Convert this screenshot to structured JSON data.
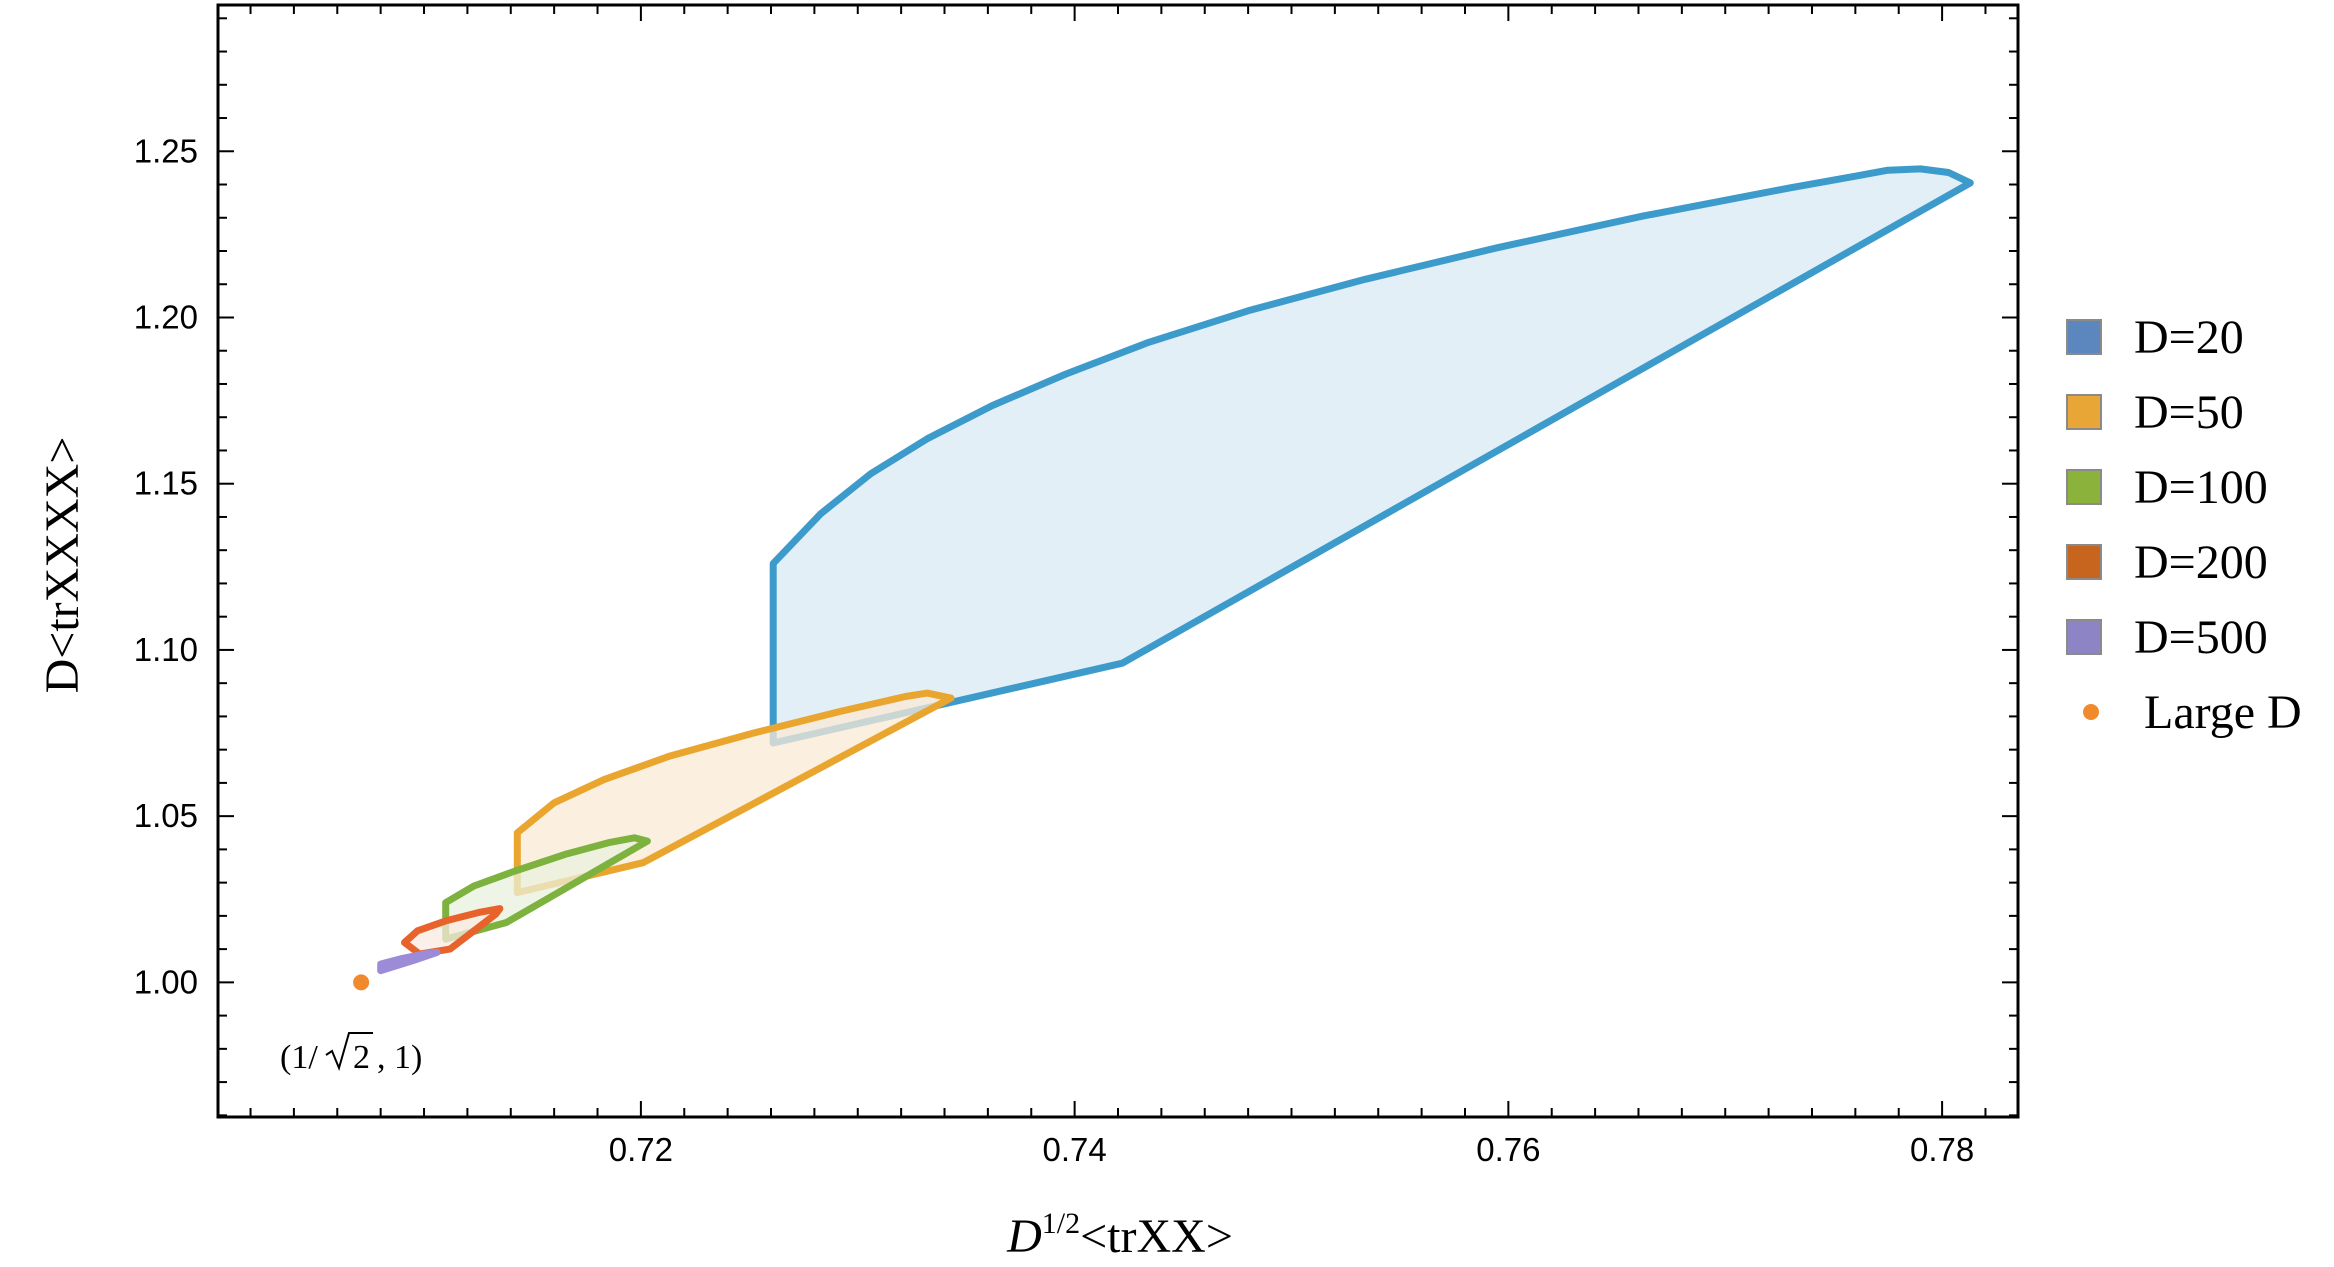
{
  "chart_data": {
    "type": "area",
    "xlabel": {
      "base": "D",
      "sup": "1/2",
      "rest": "<trXX>"
    },
    "ylabel": "D<trXXXX>",
    "xlim": [
      0.7005,
      0.7835
    ],
    "ylim": [
      0.9595,
      1.294
    ],
    "xticks": [
      0.72,
      0.74,
      0.76,
      0.78
    ],
    "xtick_labels": [
      "0.72",
      "0.74",
      "0.76",
      "0.78"
    ],
    "xminor_step": 0.002,
    "yticks": [
      1.0,
      1.05,
      1.1,
      1.15,
      1.2,
      1.25
    ],
    "ytick_labels": [
      "1.00",
      "1.05",
      "1.10",
      "1.15",
      "1.20",
      "1.25"
    ],
    "yminor_step": 0.01,
    "grid": false,
    "legend_position": "right",
    "series": [
      {
        "name": "D=20",
        "legend_color": "#5b86be",
        "stroke": "#3d9bcc",
        "fill": "#d8e9f4",
        "points": [
          [
            0.7261,
            1.072
          ],
          [
            0.7261,
            1.126
          ],
          [
            0.7283,
            1.141
          ],
          [
            0.7306,
            1.153
          ],
          [
            0.7332,
            1.1635
          ],
          [
            0.7362,
            1.1735
          ],
          [
            0.7396,
            1.183
          ],
          [
            0.7434,
            1.1925
          ],
          [
            0.748,
            1.202
          ],
          [
            0.7534,
            1.2115
          ],
          [
            0.7595,
            1.221
          ],
          [
            0.7662,
            1.2305
          ],
          [
            0.773,
            1.239
          ],
          [
            0.776,
            1.2425
          ],
          [
            0.7775,
            1.2443
          ],
          [
            0.779,
            1.2447
          ],
          [
            0.7803,
            1.2436
          ],
          [
            0.7813,
            1.2405
          ],
          [
            0.7422,
            1.096
          ],
          [
            0.7261,
            1.072
          ]
        ]
      },
      {
        "name": "D=50",
        "legend_color": "#e7a636",
        "stroke": "#eaa52f",
        "fill": "#f9ead6",
        "points": [
          [
            0.7143,
            1.027
          ],
          [
            0.7143,
            1.045
          ],
          [
            0.716,
            1.054
          ],
          [
            0.7183,
            1.061
          ],
          [
            0.7213,
            1.068
          ],
          [
            0.7252,
            1.075
          ],
          [
            0.7292,
            1.0815
          ],
          [
            0.7322,
            1.086
          ],
          [
            0.7332,
            1.087
          ],
          [
            0.7343,
            1.0855
          ],
          [
            0.7201,
            1.036
          ],
          [
            0.7143,
            1.027
          ]
        ]
      },
      {
        "name": "D=100",
        "legend_color": "#8bb33b",
        "stroke": "#7eb23f",
        "fill": "#eaf1de",
        "points": [
          [
            0.711,
            1.013
          ],
          [
            0.711,
            1.024
          ],
          [
            0.7123,
            1.029
          ],
          [
            0.7142,
            1.0335
          ],
          [
            0.7165,
            1.0385
          ],
          [
            0.7185,
            1.042
          ],
          [
            0.7197,
            1.0435
          ],
          [
            0.7203,
            1.0425
          ],
          [
            0.7138,
            1.018
          ],
          [
            0.711,
            1.013
          ]
        ]
      },
      {
        "name": "D=200",
        "legend_color": "#c7641e",
        "stroke": "#e8622c",
        "fill": "#faeae2",
        "points": [
          [
            0.7098,
            1.0085
          ],
          [
            0.7091,
            1.012
          ],
          [
            0.7097,
            1.0155
          ],
          [
            0.711,
            1.0185
          ],
          [
            0.7125,
            1.021
          ],
          [
            0.7135,
            1.0222
          ],
          [
            0.7133,
            1.0205
          ],
          [
            0.7112,
            1.01
          ],
          [
            0.7098,
            1.0085
          ]
        ]
      },
      {
        "name": "D=500",
        "legend_color": "#8d84c6",
        "stroke": "#9c8bd6",
        "fill": "#eeeaf8",
        "points": [
          [
            0.708,
            1.0035
          ],
          [
            0.708,
            1.0055
          ],
          [
            0.709,
            1.0072
          ],
          [
            0.71,
            1.0085
          ],
          [
            0.7106,
            1.009
          ],
          [
            0.7097,
            1.007
          ],
          [
            0.708,
            1.0035
          ]
        ]
      }
    ],
    "marker": {
      "name": "Large D",
      "color": "#f08a2c",
      "x": 0.7071,
      "y": 1.0
    },
    "annotation": {
      "prefix": "(1/",
      "radicand": "2",
      "suffix": ", 1)",
      "x": 0.7071,
      "y": 1.0
    }
  }
}
